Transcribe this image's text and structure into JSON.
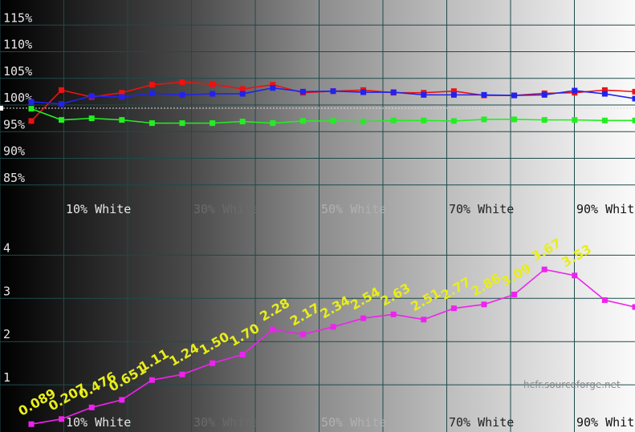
{
  "chart_data": [
    {
      "type": "line",
      "title": "",
      "xlabel": "",
      "ylabel": "",
      "x": [
        0,
        5,
        10,
        15,
        20,
        25,
        30,
        35,
        40,
        45,
        50,
        55,
        60,
        65,
        70,
        75,
        80,
        85,
        90,
        95,
        100
      ],
      "x_tick_labels": [
        "10% White",
        "30% White",
        "50% White",
        "70% White",
        "90% White"
      ],
      "y_tick_labels": [
        "115%",
        "110%",
        "105%",
        "100%",
        "95%",
        "90%",
        "85%"
      ],
      "ylim": [
        82,
        118
      ],
      "grid": true,
      "reference_line": 99.4,
      "series": [
        {
          "color": "#ee1111",
          "values": [
            97.0,
            102.8,
            101.5,
            102.3,
            103.8,
            104.3,
            103.9,
            103.0,
            103.8,
            102.3,
            102.6,
            102.8,
            102.3,
            102.3,
            102.6,
            101.8,
            101.8,
            102.2,
            102.3,
            102.8,
            102.5
          ]
        },
        {
          "color": "#2222ee",
          "values": [
            100.6,
            100.2,
            101.7,
            101.5,
            102.2,
            101.9,
            102.1,
            102.1,
            103.2,
            102.5,
            102.6,
            102.4,
            102.4,
            101.9,
            101.9,
            101.9,
            101.8,
            101.9,
            102.7,
            102.1,
            101.2
          ]
        },
        {
          "color": "#22ee22",
          "values": [
            99.3,
            97.2,
            97.5,
            97.2,
            96.6,
            96.6,
            96.6,
            96.9,
            96.6,
            97.0,
            97.0,
            96.9,
            97.1,
            97.1,
            97.0,
            97.3,
            97.3,
            97.2,
            97.2,
            97.1,
            97.1
          ]
        }
      ]
    },
    {
      "type": "line",
      "title": "",
      "xlabel": "",
      "ylabel": "",
      "x": [
        0,
        5,
        10,
        15,
        20,
        25,
        30,
        35,
        40,
        45,
        50,
        55,
        60,
        65,
        70,
        75,
        80,
        85,
        90,
        95,
        100
      ],
      "x_tick_labels": [
        "10% White",
        "30% White",
        "50% White",
        "70% White",
        "90% White"
      ],
      "y_tick_labels": [
        "4",
        "3",
        "2",
        "1"
      ],
      "ylim": [
        0,
        4.6
      ],
      "grid": true,
      "series": [
        {
          "color": "#ee22ee",
          "values": [
            0.089,
            0.207,
            0.476,
            0.651,
            1.11,
            1.24,
            1.5,
            1.7,
            2.28,
            2.17,
            2.34,
            2.54,
            2.63,
            2.51,
            2.77,
            2.86,
            3.09,
            3.67,
            3.53,
            2.96,
            2.8
          ]
        }
      ],
      "data_labels": [
        "0.089",
        "0.207",
        "0.476",
        "0.651",
        "1.11",
        "1.24",
        "1.50",
        "1.70",
        "2.28",
        "2.17",
        "2.34",
        "2.54",
        "2.63",
        "2.51",
        "2.77",
        "2.86",
        "3.09",
        "3.67",
        "3.53",
        "",
        ""
      ]
    }
  ],
  "watermark": "hcfr.sourceforge.net"
}
